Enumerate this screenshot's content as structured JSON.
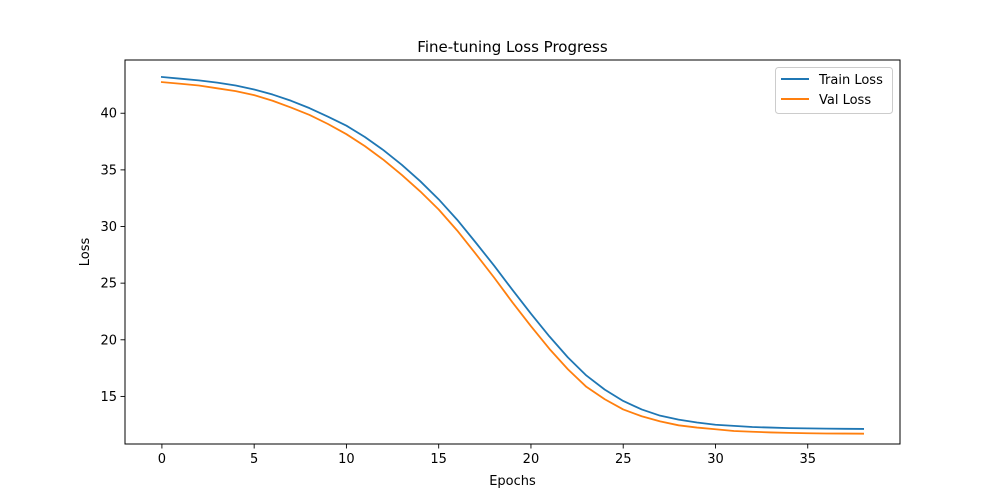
{
  "chart_data": {
    "type": "line",
    "title": "Fine-tuning Loss Progress",
    "xlabel": "Epochs",
    "ylabel": "Loss",
    "xlim": [
      -2,
      40
    ],
    "ylim": [
      10.8,
      44.7
    ],
    "xticks": [
      0,
      5,
      10,
      15,
      20,
      25,
      30,
      35
    ],
    "yticks": [
      15,
      20,
      25,
      30,
      35,
      40
    ],
    "grid": false,
    "legend_position": "top-right",
    "x": [
      0,
      1,
      2,
      3,
      4,
      5,
      6,
      7,
      8,
      9,
      10,
      11,
      12,
      13,
      14,
      15,
      16,
      17,
      18,
      19,
      20,
      21,
      22,
      23,
      24,
      25,
      26,
      27,
      28,
      29,
      30,
      31,
      32,
      33,
      34,
      35,
      36,
      37,
      38
    ],
    "series": [
      {
        "name": "Train Loss",
        "color": "#1f77b4",
        "values": [
          43.2,
          43.05,
          42.9,
          42.7,
          42.45,
          42.1,
          41.65,
          41.1,
          40.45,
          39.7,
          38.9,
          37.9,
          36.75,
          35.45,
          34.0,
          32.4,
          30.6,
          28.6,
          26.55,
          24.4,
          22.3,
          20.3,
          18.45,
          16.85,
          15.6,
          14.6,
          13.85,
          13.3,
          12.95,
          12.7,
          12.5,
          12.4,
          12.3,
          12.25,
          12.2,
          12.18,
          12.16,
          12.14,
          12.13
        ]
      },
      {
        "name": "Val Loss",
        "color": "#ff7f0e",
        "values": [
          42.75,
          42.6,
          42.45,
          42.2,
          41.95,
          41.6,
          41.1,
          40.5,
          39.85,
          39.05,
          38.15,
          37.1,
          35.9,
          34.55,
          33.1,
          31.5,
          29.65,
          27.6,
          25.5,
          23.3,
          21.2,
          19.2,
          17.4,
          15.85,
          14.75,
          13.85,
          13.25,
          12.8,
          12.45,
          12.25,
          12.1,
          11.95,
          11.88,
          11.82,
          11.78,
          11.75,
          11.73,
          11.72,
          11.71
        ]
      }
    ]
  }
}
